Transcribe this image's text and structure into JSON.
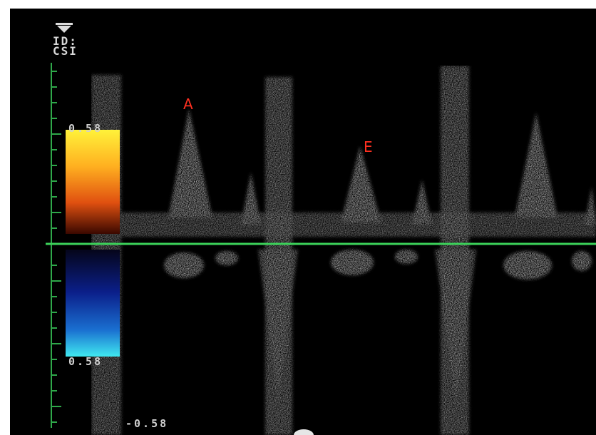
{
  "overlay": {
    "id_label": "ID:",
    "probe_label": "CSI"
  },
  "color_scale": {
    "top_value": "0.58",
    "bottom_value": "0.58",
    "baseline_value": "-0.58",
    "positive_colors": [
      "#fff23a",
      "#ffb020",
      "#e05010",
      "#501000"
    ],
    "negative_colors": [
      "#05051a",
      "#0b1f8a",
      "#1a6fd0",
      "#3fe8f0"
    ]
  },
  "annotations": {
    "peak_a": "A",
    "peak_e": "E"
  },
  "colors": {
    "baseline": "#3cd25a",
    "scale_axis": "#2fa84a",
    "annotation": "#ff3020",
    "spectrum": "#d0d0d0"
  }
}
